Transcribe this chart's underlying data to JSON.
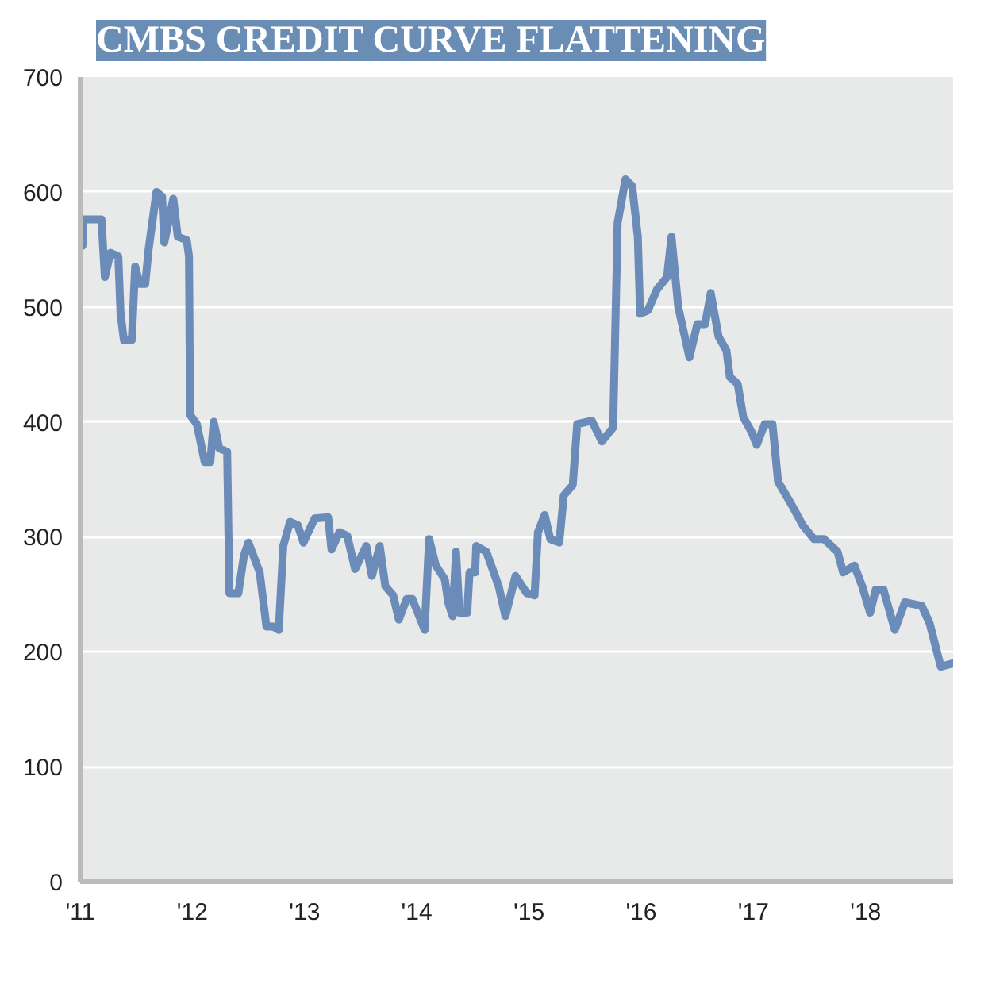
{
  "chart_data": {
    "type": "line",
    "title": "CMBS CREDIT CURVE FLATTENING",
    "xlim": [
      2011,
      2018.78
    ],
    "ylim": [
      0,
      700
    ],
    "xticks": [
      {
        "value": 2011,
        "label": "'11"
      },
      {
        "value": 2012,
        "label": "'12"
      },
      {
        "value": 2013,
        "label": "'13"
      },
      {
        "value": 2014,
        "label": "'14"
      },
      {
        "value": 2015,
        "label": "'15"
      },
      {
        "value": 2016,
        "label": "'16"
      },
      {
        "value": 2017,
        "label": "'17"
      },
      {
        "value": 2018,
        "label": "'18"
      }
    ],
    "yticks": [
      0,
      100,
      200,
      300,
      400,
      500,
      600,
      700
    ],
    "grid": "y",
    "marker": "none",
    "line_style": "solid",
    "series": [
      {
        "color": "#6b8cb8",
        "x": [
          2011.02,
          2011.03,
          2011.19,
          2011.22,
          2011.27,
          2011.34,
          2011.36,
          2011.39,
          2011.46,
          2011.49,
          2011.53,
          2011.58,
          2011.61,
          2011.68,
          2011.73,
          2011.75,
          2011.83,
          2011.87,
          2011.95,
          2011.97,
          2011.98,
          2012.04,
          2012.11,
          2012.16,
          2012.19,
          2012.24,
          2012.31,
          2012.33,
          2012.41,
          2012.46,
          2012.5,
          2012.6,
          2012.66,
          2012.72,
          2012.77,
          2012.81,
          2012.87,
          2012.94,
          2012.99,
          2013.09,
          2013.21,
          2013.24,
          2013.31,
          2013.38,
          2013.45,
          2013.55,
          2013.6,
          2013.67,
          2013.72,
          2013.79,
          2013.84,
          2013.91,
          2013.96,
          2014.07,
          2014.11,
          2014.17,
          2014.25,
          2014.28,
          2014.32,
          2014.35,
          2014.38,
          2014.45,
          2014.47,
          2014.52,
          2014.53,
          2014.62,
          2014.73,
          2014.79,
          2014.88,
          2014.98,
          2015.05,
          2015.08,
          2015.14,
          2015.19,
          2015.27,
          2015.31,
          2015.39,
          2015.43,
          2015.56,
          2015.65,
          2015.75,
          2015.79,
          2015.86,
          2015.92,
          2015.97,
          2015.99,
          2016.06,
          2016.14,
          2016.23,
          2016.27,
          2016.33,
          2016.43,
          2016.5,
          2016.57,
          2016.62,
          2016.69,
          2016.76,
          2016.79,
          2016.86,
          2016.91,
          2016.98,
          2017.03,
          2017.1,
          2017.17,
          2017.22,
          2017.34,
          2017.44,
          2017.54,
          2017.63,
          2017.75,
          2017.8,
          2017.9,
          2017.97,
          2018.04,
          2018.09,
          2018.16,
          2018.26,
          2018.35,
          2018.5,
          2018.57,
          2018.67,
          2018.78
        ],
        "values": [
          553,
          576,
          576,
          526,
          547,
          544,
          494,
          471,
          471,
          535,
          520,
          520,
          550,
          600,
          596,
          556,
          594,
          561,
          558,
          544,
          406,
          398,
          365,
          365,
          400,
          377,
          374,
          251,
          251,
          284,
          295,
          269,
          222,
          222,
          219,
          292,
          313,
          310,
          295,
          316,
          317,
          289,
          304,
          301,
          272,
          292,
          266,
          292,
          257,
          249,
          228,
          246,
          246,
          219,
          298,
          275,
          263,
          243,
          231,
          287,
          234,
          234,
          269,
          269,
          292,
          287,
          257,
          231,
          266,
          251,
          249,
          304,
          319,
          298,
          295,
          336,
          345,
          398,
          401,
          383,
          395,
          573,
          611,
          605,
          561,
          494,
          497,
          515,
          526,
          561,
          500,
          456,
          485,
          485,
          512,
          474,
          462,
          439,
          433,
          404,
          392,
          380,
          398,
          398,
          348,
          328,
          310,
          298,
          298,
          287,
          269,
          275,
          257,
          234,
          254,
          254,
          219,
          243,
          240,
          225,
          187,
          190
        ]
      }
    ]
  }
}
